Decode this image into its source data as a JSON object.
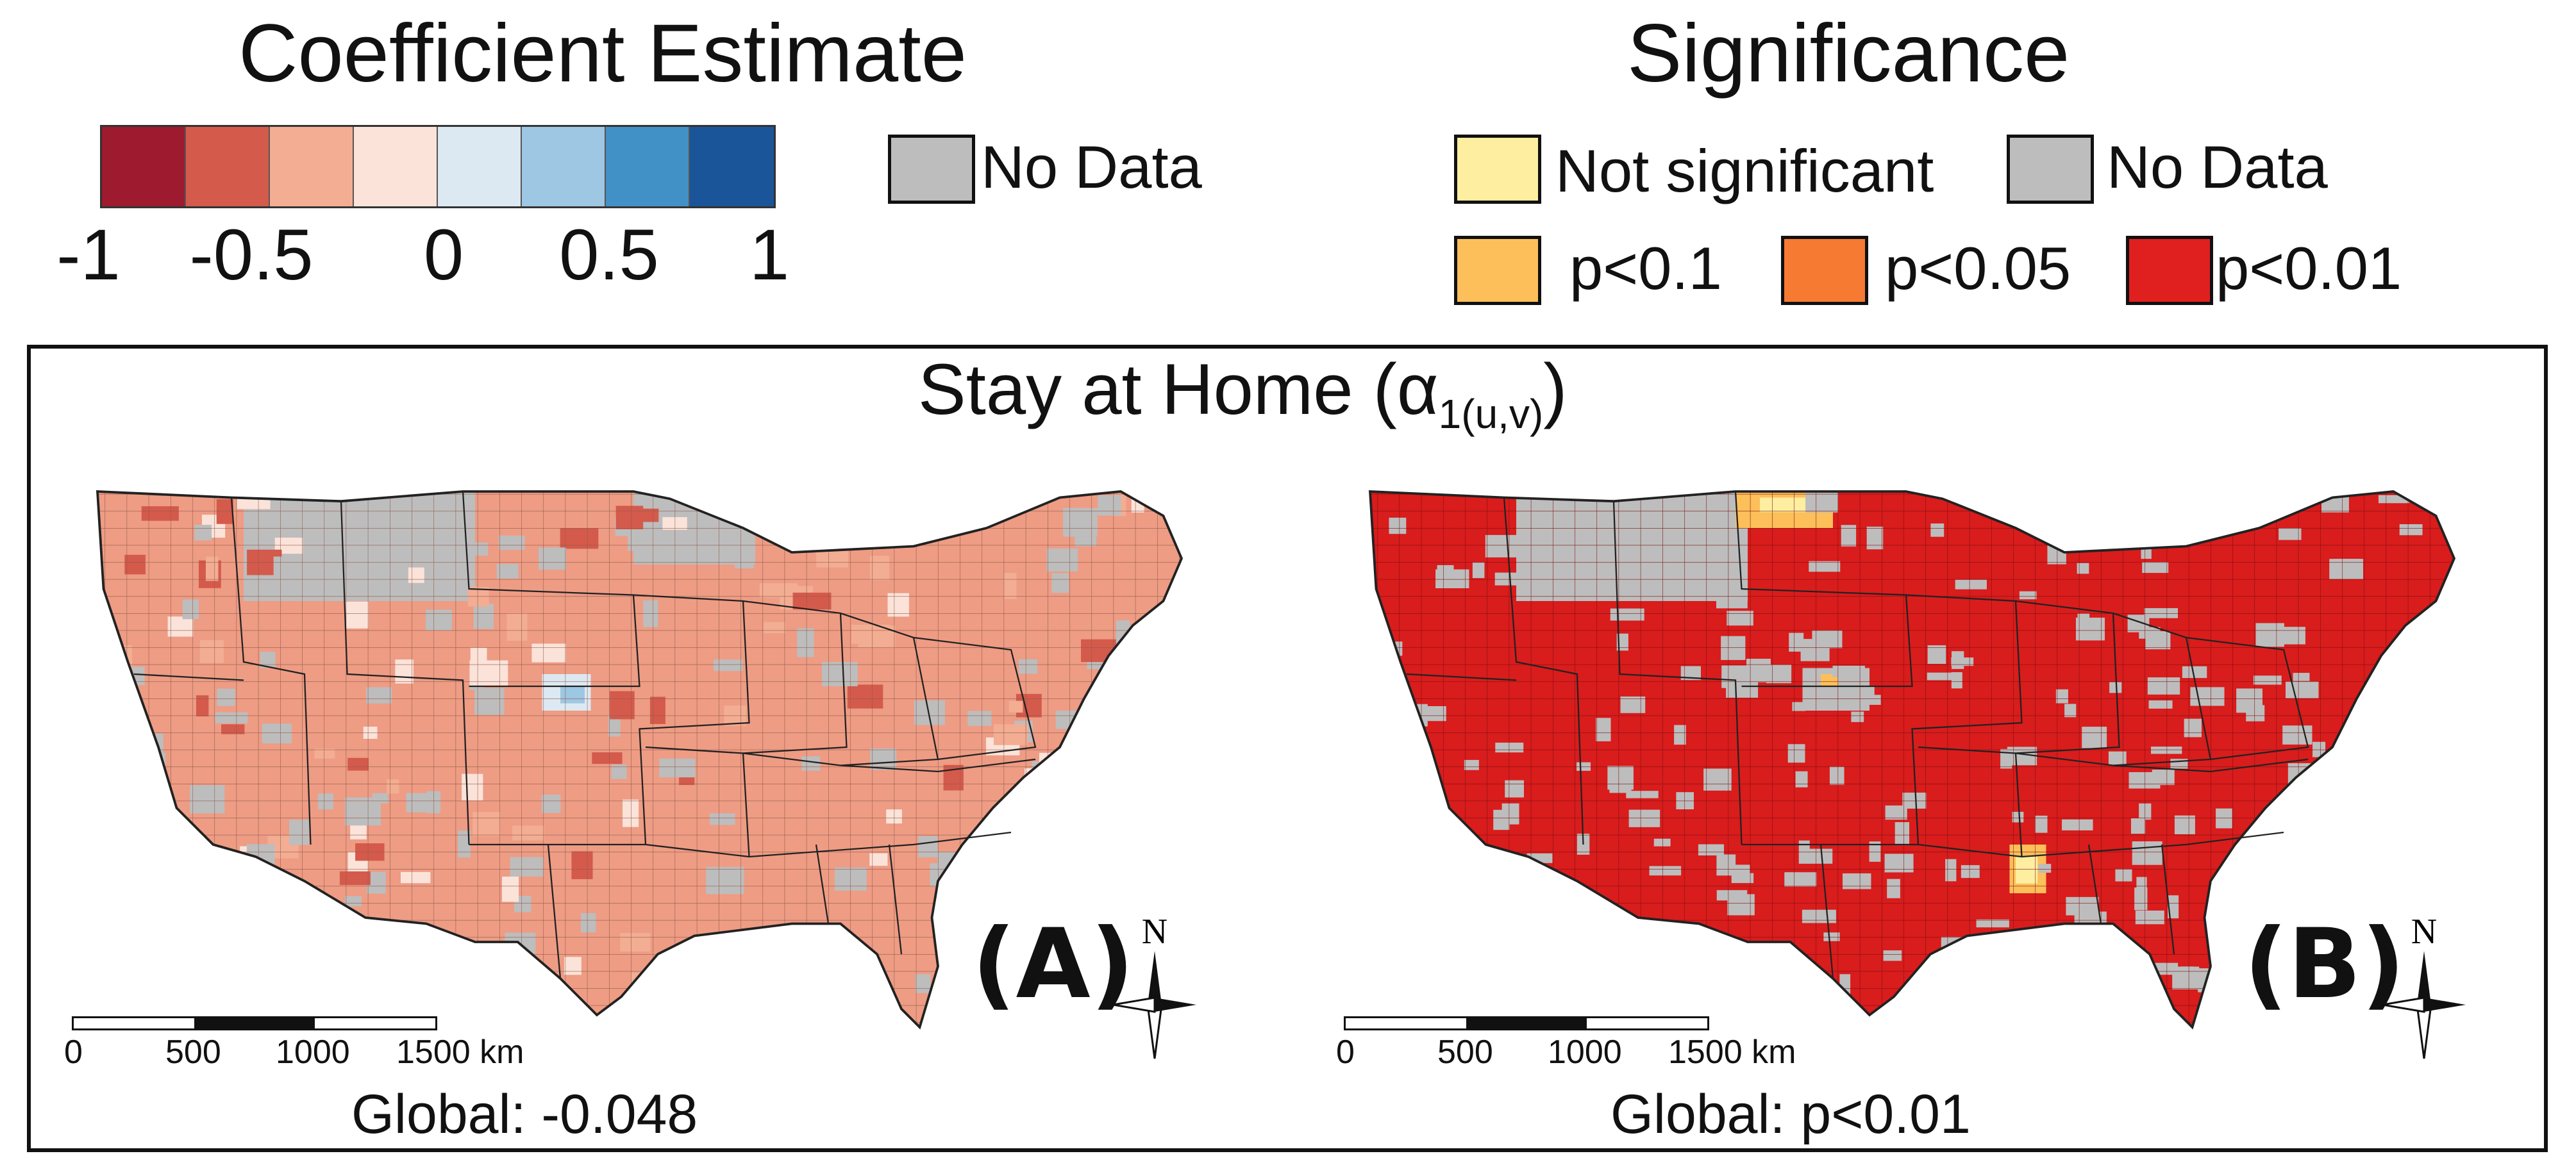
{
  "coefficient_legend": {
    "title": "Coefficient Estimate",
    "colors": [
      "#9e1a2e",
      "#d45a4c",
      "#f3ad92",
      "#fbe3d9",
      "#dde9f2",
      "#9dc7e2",
      "#4291c6",
      "#1a5599"
    ],
    "ticks": [
      "-1",
      "-0.5",
      "0",
      "0.5",
      "1"
    ],
    "no_data_label": "No Data",
    "no_data_color": "#bdbdbd"
  },
  "significance_legend": {
    "title": "Significance",
    "items": [
      {
        "label": "Not significant",
        "color": "#fdeea0"
      },
      {
        "label": "No Data",
        "color": "#bdbdbd"
      },
      {
        "label": "p<0.1",
        "color": "#fcbf5a"
      },
      {
        "label": "p<0.05",
        "color": "#f77a32"
      },
      {
        "label": "p<0.01",
        "color": "#e01f1f"
      }
    ]
  },
  "figure": {
    "title_main": "Stay at Home (α",
    "title_sub": "1(u,v)",
    "title_end": ")"
  },
  "panels": [
    {
      "label": "(A)",
      "global_text": "Global: -0.048",
      "base_color": "#ee9c84",
      "north_label": "N",
      "scale_labels": [
        "0",
        "500",
        "1000",
        "1500 km"
      ]
    },
    {
      "label": "(B)",
      "global_text": "Global: p<0.01",
      "base_color": "#d91c1c",
      "north_label": "N",
      "scale_labels": [
        "0",
        "500",
        "1000",
        "1500 km"
      ]
    }
  ]
}
